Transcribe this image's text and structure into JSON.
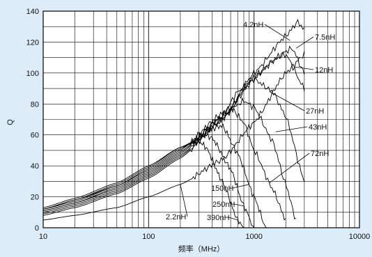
{
  "chart_data": {
    "type": "line",
    "title": "",
    "xlabel": "频率（MHz）",
    "ylabel": "Q",
    "x_scale": "log",
    "xlim": [
      10,
      10000
    ],
    "ylim": [
      0,
      140
    ],
    "grid": true,
    "x_ticks": [
      {
        "value": 10,
        "label": "10"
      },
      {
        "value": 100,
        "label": "100"
      },
      {
        "value": 1000,
        "label": "1000"
      },
      {
        "value": 10000,
        "label": "10000"
      }
    ],
    "y_ticks": [
      {
        "value": 0,
        "label": "0"
      },
      {
        "value": 20,
        "label": "20"
      },
      {
        "value": 40,
        "label": "40"
      },
      {
        "value": 60,
        "label": "60"
      },
      {
        "value": 80,
        "label": "80"
      },
      {
        "value": 100,
        "label": "100"
      },
      {
        "value": 120,
        "label": "120"
      },
      {
        "value": 140,
        "label": "140"
      }
    ],
    "series": [
      {
        "name": "2.2nH",
        "x": [
          10,
          20,
          50,
          100,
          200,
          500,
          1000,
          2000,
          3000
        ],
        "y": [
          5,
          8,
          13,
          20,
          28,
          44,
          68,
          100,
          112
        ]
      },
      {
        "name": "4.2nH",
        "x": [
          10,
          20,
          50,
          100,
          200,
          500,
          1000,
          2000,
          2600,
          3000
        ],
        "y": [
          8,
          13,
          22,
          32,
          45,
          70,
          100,
          124,
          133,
          128
        ]
      },
      {
        "name": "7.5nH",
        "x": [
          10,
          20,
          50,
          100,
          200,
          500,
          1000,
          2000,
          2300,
          3000
        ],
        "y": [
          9,
          14,
          23,
          33,
          46,
          70,
          98,
          114,
          116,
          100
        ]
      },
      {
        "name": "12nH",
        "x": [
          10,
          20,
          50,
          100,
          200,
          500,
          1000,
          1500,
          2000,
          3000
        ],
        "y": [
          10,
          15,
          24,
          34,
          47,
          70,
          96,
          108,
          112,
          90
        ]
      },
      {
        "name": "27nH",
        "x": [
          10,
          20,
          50,
          100,
          200,
          500,
          700,
          1000,
          1500,
          2000,
          3000
        ],
        "y": [
          11,
          16,
          25,
          35,
          48,
          72,
          88,
          96,
          88,
          72,
          30
        ]
      },
      {
        "name": "43nH",
        "x": [
          10,
          20,
          50,
          100,
          200,
          500,
          800,
          1000,
          1500,
          2000,
          2500
        ],
        "y": [
          11,
          16,
          26,
          36,
          49,
          72,
          82,
          78,
          56,
          28,
          5
        ]
      },
      {
        "name": "72nH",
        "x": [
          10,
          20,
          50,
          100,
          200,
          500,
          600,
          800,
          1000,
          1500,
          2000
        ],
        "y": [
          12,
          17,
          27,
          37,
          50,
          74,
          78,
          68,
          50,
          25,
          5
        ]
      },
      {
        "name": "150nH",
        "x": [
          10,
          20,
          50,
          100,
          200,
          400,
          500,
          700,
          1000,
          1300
        ],
        "y": [
          12,
          18,
          27,
          38,
          51,
          64,
          66,
          48,
          20,
          0
        ]
      },
      {
        "name": "250nH",
        "x": [
          10,
          20,
          50,
          100,
          200,
          350,
          400,
          600,
          800,
          1000
        ],
        "y": [
          12,
          18,
          28,
          39,
          52,
          60,
          58,
          38,
          14,
          0
        ]
      },
      {
        "name": "390nH",
        "x": [
          10,
          20,
          50,
          100,
          200,
          300,
          350,
          500,
          700,
          800
        ],
        "y": [
          13,
          19,
          29,
          40,
          52,
          56,
          52,
          30,
          5,
          0
        ]
      }
    ]
  }
}
